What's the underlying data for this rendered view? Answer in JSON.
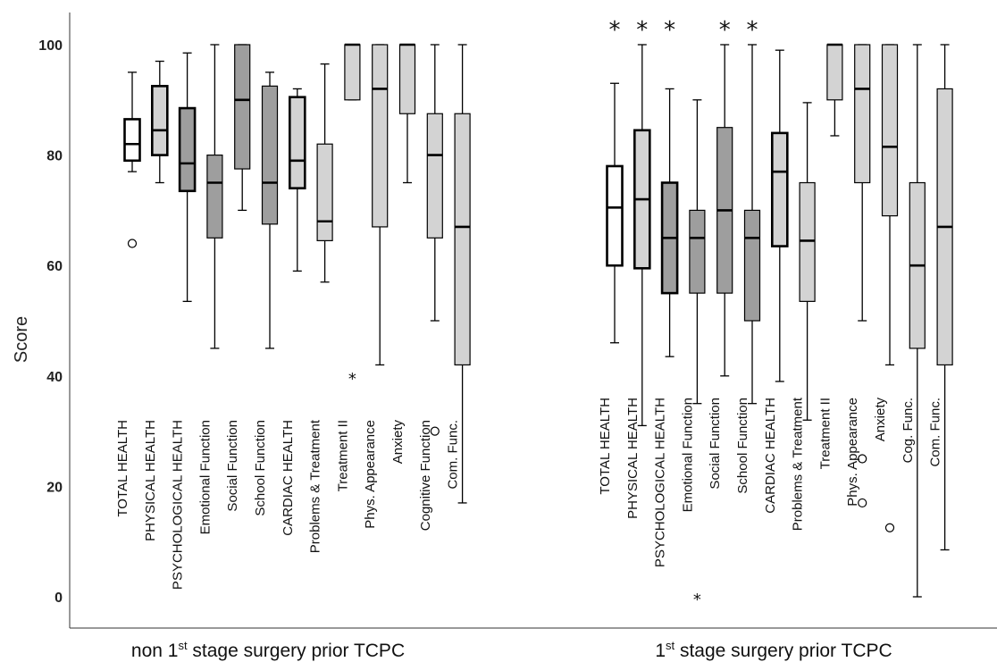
{
  "chart_data": {
    "type": "boxplot",
    "ylabel": "Score",
    "ylim": [
      0,
      100
    ],
    "yticks": [
      0,
      20,
      40,
      60,
      80,
      100
    ],
    "groups": [
      {
        "label_pre": "non 1",
        "label_sup": "st",
        "label_post": " stage surgery prior TCPC",
        "boxes": [
          {
            "label": "TOTAL HEALTH",
            "fill": "#ffffff",
            "bold": true,
            "whislo": 77,
            "q1": 79,
            "med": 82,
            "q3": 86.5,
            "whishi": 95,
            "outliers": [
              64
            ],
            "extremes": [],
            "sig": false
          },
          {
            "label": "PHYSICAL HEALTH",
            "fill": "#d3d3d3",
            "bold": true,
            "whislo": 75,
            "q1": 80,
            "med": 84.5,
            "q3": 92.5,
            "whishi": 97,
            "outliers": [],
            "extremes": [],
            "sig": false
          },
          {
            "label": "PSYCHOLOGICAL HEALTH",
            "fill": "#9e9e9e",
            "bold": true,
            "whislo": 53.5,
            "q1": 73.5,
            "med": 78.5,
            "q3": 88.5,
            "whishi": 98.5,
            "outliers": [],
            "extremes": [],
            "sig": false
          },
          {
            "label": "Emotional Function",
            "fill": "#9e9e9e",
            "bold": false,
            "whislo": 45,
            "q1": 65,
            "med": 75,
            "q3": 80,
            "whishi": 100,
            "outliers": [],
            "extremes": [],
            "sig": false
          },
          {
            "label": "Social Function",
            "fill": "#9e9e9e",
            "bold": false,
            "whislo": 70,
            "q1": 77.5,
            "med": 90,
            "q3": 100,
            "whishi": 100,
            "outliers": [],
            "extremes": [],
            "sig": false
          },
          {
            "label": "School Function",
            "fill": "#9e9e9e",
            "bold": false,
            "whislo": 45,
            "q1": 67.5,
            "med": 75,
            "q3": 92.5,
            "whishi": 95,
            "outliers": [],
            "extremes": [],
            "sig": false
          },
          {
            "label": "CARDIAC HEALTH",
            "fill": "#d3d3d3",
            "bold": true,
            "whislo": 59,
            "q1": 74,
            "med": 79,
            "q3": 90.5,
            "whishi": 92,
            "outliers": [],
            "extremes": [],
            "sig": false
          },
          {
            "label": "Problems & Treatment",
            "fill": "#d3d3d3",
            "bold": false,
            "whislo": 57,
            "q1": 64.5,
            "med": 68,
            "q3": 82,
            "whishi": 96.5,
            "outliers": [],
            "extremes": [],
            "sig": false
          },
          {
            "label": "Treatment II",
            "fill": "#d3d3d3",
            "bold": false,
            "whislo": 90,
            "q1": 90,
            "med": 100,
            "q3": 100,
            "whishi": 100,
            "outliers": [],
            "extremes": [
              40
            ],
            "sig": false
          },
          {
            "label": "Phys. Appearance",
            "fill": "#d3d3d3",
            "bold": false,
            "whislo": 42,
            "q1": 67,
            "med": 92,
            "q3": 100,
            "whishi": 100,
            "outliers": [],
            "extremes": [],
            "sig": false
          },
          {
            "label": "Anxiety",
            "fill": "#d3d3d3",
            "bold": false,
            "whislo": 75,
            "q1": 87.5,
            "med": 100,
            "q3": 100,
            "whishi": 100,
            "outliers": [],
            "extremes": [],
            "sig": false
          },
          {
            "label": "Cognitive Function",
            "fill": "#d3d3d3",
            "bold": false,
            "whislo": 50,
            "q1": 65,
            "med": 80,
            "q3": 87.5,
            "whishi": 100,
            "outliers": [
              30
            ],
            "extremes": [],
            "sig": false
          },
          {
            "label": "Com. Func.",
            "fill": "#d3d3d3",
            "bold": false,
            "whislo": 17,
            "q1": 42,
            "med": 67,
            "q3": 87.5,
            "whishi": 100,
            "outliers": [],
            "extremes": [],
            "sig": false
          }
        ]
      },
      {
        "label_pre": "1",
        "label_sup": "st",
        "label_post": " stage surgery prior TCPC",
        "boxes": [
          {
            "label": "TOTAL HEALTH",
            "fill": "#ffffff",
            "bold": true,
            "whislo": 46,
            "q1": 60,
            "med": 70.5,
            "q3": 78,
            "whishi": 93,
            "outliers": [],
            "extremes": [],
            "sig": true
          },
          {
            "label": "PHYSICAL HEALTH",
            "fill": "#d3d3d3",
            "bold": true,
            "whislo": 31,
            "q1": 59.5,
            "med": 72,
            "q3": 84.5,
            "whishi": 100,
            "outliers": [],
            "extremes": [],
            "sig": true
          },
          {
            "label": "PSYCHOLOGICAL HEALTH",
            "fill": "#9e9e9e",
            "bold": true,
            "whislo": 43.5,
            "q1": 55,
            "med": 65,
            "q3": 75,
            "whishi": 92,
            "outliers": [],
            "extremes": [],
            "sig": true
          },
          {
            "label": "Emotional Function",
            "fill": "#9e9e9e",
            "bold": false,
            "whislo": 35,
            "q1": 55,
            "med": 65,
            "q3": 70,
            "whishi": 90,
            "outliers": [],
            "extremes": [
              0
            ],
            "sig": false
          },
          {
            "label": "Social Function",
            "fill": "#9e9e9e",
            "bold": false,
            "whislo": 40,
            "q1": 55,
            "med": 70,
            "q3": 85,
            "whishi": 100,
            "outliers": [],
            "extremes": [],
            "sig": true
          },
          {
            "label": "School Function",
            "fill": "#9e9e9e",
            "bold": false,
            "whislo": 35,
            "q1": 50,
            "med": 65,
            "q3": 70,
            "whishi": 100,
            "outliers": [],
            "extremes": [],
            "sig": true
          },
          {
            "label": "CARDIAC HEALTH",
            "fill": "#d3d3d3",
            "bold": true,
            "whislo": 39,
            "q1": 63.5,
            "med": 77,
            "q3": 84,
            "whishi": 99,
            "outliers": [],
            "extremes": [],
            "sig": false
          },
          {
            "label": "Problems & Treatment",
            "fill": "#d3d3d3",
            "bold": false,
            "whislo": 32,
            "q1": 53.5,
            "med": 64.5,
            "q3": 75,
            "whishi": 89.5,
            "outliers": [],
            "extremes": [],
            "sig": false
          },
          {
            "label": "Treatment II",
            "fill": "#d3d3d3",
            "bold": false,
            "whislo": 83.5,
            "q1": 90,
            "med": 100,
            "q3": 100,
            "whishi": 100,
            "outliers": [],
            "extremes": [],
            "sig": false
          },
          {
            "label": "Phys. Appearance",
            "fill": "#d3d3d3",
            "bold": false,
            "whislo": 50,
            "q1": 75,
            "med": 92,
            "q3": 100,
            "whishi": 100,
            "outliers": [
              25,
              17
            ],
            "extremes": [],
            "sig": false
          },
          {
            "label": "Anxiety",
            "fill": "#d3d3d3",
            "bold": false,
            "whislo": 42,
            "q1": 69,
            "med": 81.5,
            "q3": 100,
            "whishi": 100,
            "outliers": [
              12.5
            ],
            "extremes": [],
            "sig": false
          },
          {
            "label": "Cog. Func.",
            "fill": "#d3d3d3",
            "bold": false,
            "whislo": 0,
            "q1": 45,
            "med": 60,
            "q3": 75,
            "whishi": 100,
            "outliers": [],
            "extremes": [],
            "sig": false
          },
          {
            "label": "Com. Func.",
            "fill": "#d3d3d3",
            "bold": false,
            "whislo": 8.5,
            "q1": 42,
            "med": 67,
            "q3": 92,
            "whishi": 100,
            "outliers": [],
            "extremes": [],
            "sig": false
          }
        ]
      }
    ]
  }
}
